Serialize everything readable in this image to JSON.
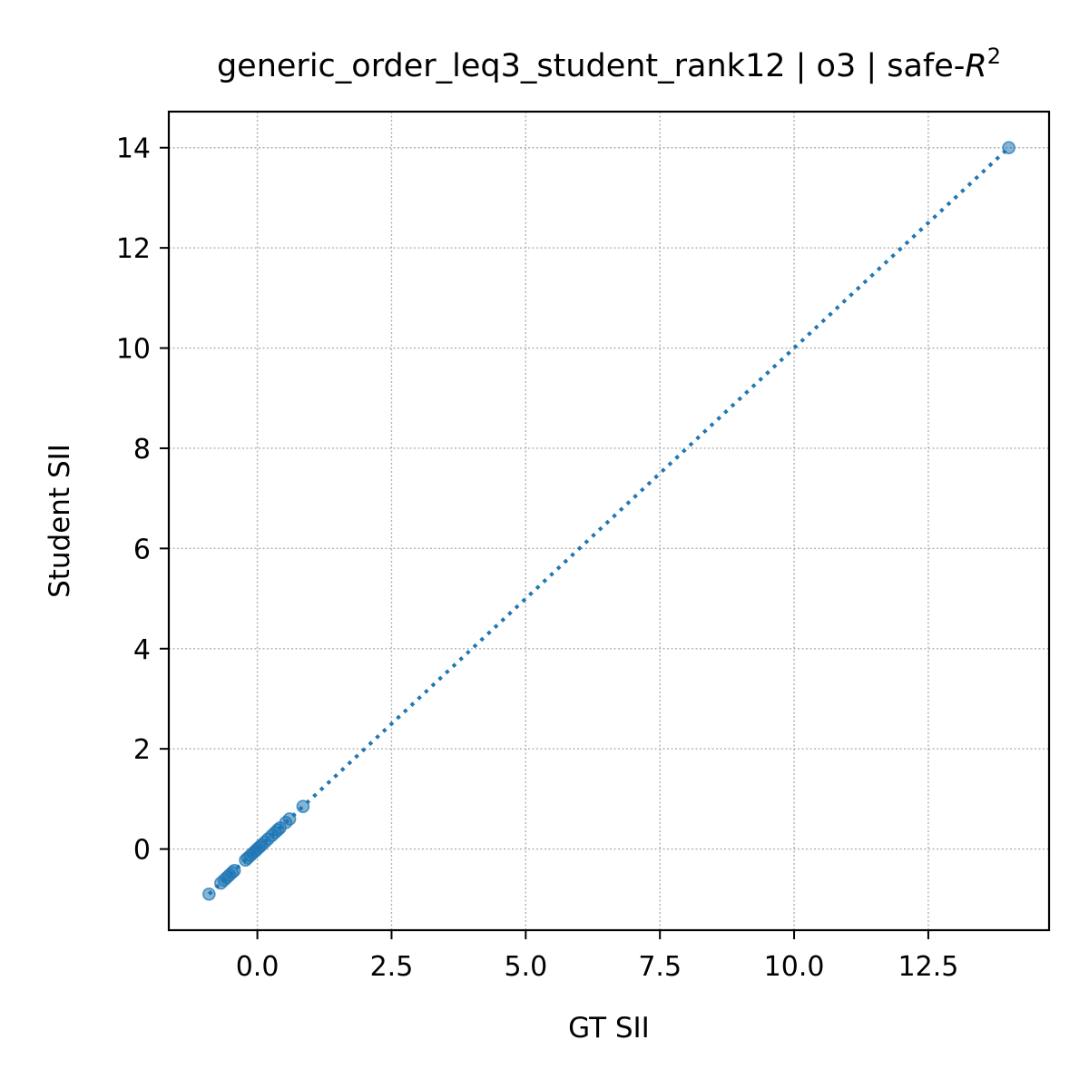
{
  "chart_data": {
    "type": "scatter",
    "title": "generic_order_leq3_student_rank12 | o3 | safe-",
    "title_math": "R",
    "title_superscript": "2",
    "xlabel": "GT SII",
    "ylabel": "Student SII",
    "xlim": [
      -1.65,
      14.75
    ],
    "ylim": [
      -1.62,
      14.72
    ],
    "x_ticks": [
      0.0,
      2.5,
      5.0,
      7.5,
      10.0,
      12.5
    ],
    "x_tick_labels": [
      "0.0",
      "2.5",
      "5.0",
      "7.5",
      "10.0",
      "12.5"
    ],
    "y_ticks": [
      0,
      2,
      4,
      6,
      8,
      10,
      12,
      14
    ],
    "y_tick_labels": [
      "0",
      "2",
      "4",
      "6",
      "8",
      "10",
      "12",
      "14"
    ],
    "grid": true,
    "reference_line": {
      "style": "dotted",
      "from": [
        -0.9,
        -0.9
      ],
      "to": [
        14.0,
        14.0
      ]
    },
    "series": [
      {
        "color": "#1f77b4",
        "points": [
          [
            -0.9,
            -0.9
          ],
          [
            -0.68,
            -0.68
          ],
          [
            -0.62,
            -0.62
          ],
          [
            -0.57,
            -0.57
          ],
          [
            -0.52,
            -0.52
          ],
          [
            -0.47,
            -0.47
          ],
          [
            -0.43,
            -0.43
          ],
          [
            -0.22,
            -0.22
          ],
          [
            -0.18,
            -0.18
          ],
          [
            -0.13,
            -0.13
          ],
          [
            -0.08,
            -0.08
          ],
          [
            -0.04,
            -0.04
          ],
          [
            0.0,
            0.0
          ],
          [
            0.04,
            0.04
          ],
          [
            0.08,
            0.08
          ],
          [
            0.14,
            0.14
          ],
          [
            0.2,
            0.2
          ],
          [
            0.27,
            0.27
          ],
          [
            0.33,
            0.33
          ],
          [
            0.38,
            0.38
          ],
          [
            0.42,
            0.42
          ],
          [
            0.53,
            0.53
          ],
          [
            0.6,
            0.6
          ],
          [
            0.85,
            0.85
          ],
          [
            14.0,
            14.0
          ]
        ]
      }
    ]
  }
}
